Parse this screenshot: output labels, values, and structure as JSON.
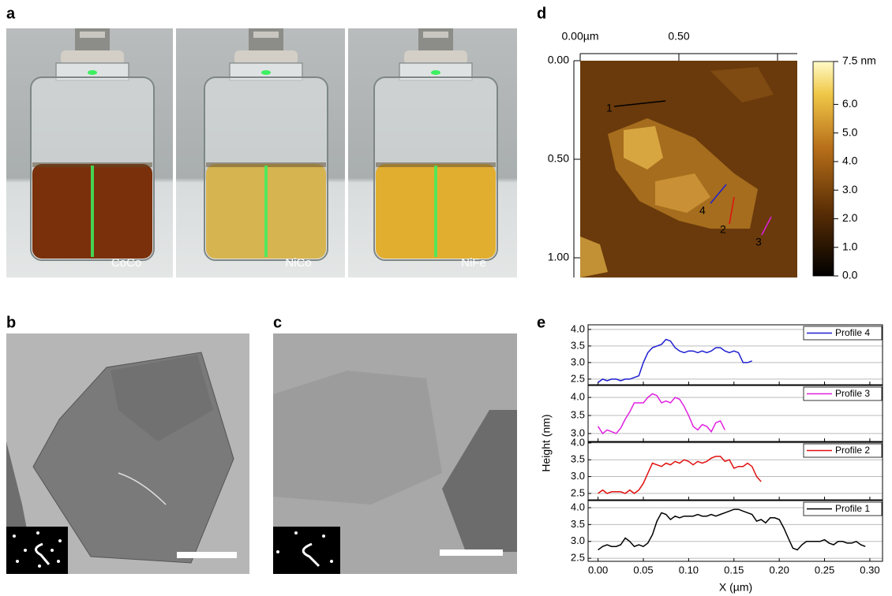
{
  "panel_labels": [
    "a",
    "b",
    "c",
    "d",
    "e"
  ],
  "vial_labels": [
    "CoCo",
    "NiCo",
    "NiFe"
  ],
  "afm": {
    "xlim": [
      0,
      1.1
    ],
    "ylim": [
      0,
      1.1
    ],
    "xticks": [
      {
        "value": 0,
        "label": "0.00µm"
      },
      {
        "value": 0.5,
        "label": "0.50"
      },
      {
        "value": 1.0,
        "label": null
      }
    ],
    "yticks": [
      {
        "value": 0,
        "label": "0.00"
      },
      {
        "value": 0.5,
        "label": "0.50"
      },
      {
        "value": 1.0,
        "label": "1.00"
      }
    ],
    "colorbar": {
      "clim": [
        0,
        7.5
      ],
      "ticks": [
        {
          "value": 0,
          "label": "0.0"
        },
        {
          "value": 1,
          "label": "1.0"
        },
        {
          "value": 2,
          "label": "2.0"
        },
        {
          "value": 3,
          "label": "3.0"
        },
        {
          "value": 4,
          "label": "4.0"
        },
        {
          "value": 5,
          "label": "5.0"
        },
        {
          "value": 6,
          "label": "6.0"
        },
        {
          "value": 7.5,
          "label": "7.5 nm"
        }
      ]
    },
    "profile_labels": [
      "1",
      "2",
      "3",
      "4"
    ]
  },
  "chart_data": {
    "type": "line",
    "x_label": "X (µm)",
    "y_label": "Height (nm)",
    "xlim": [
      -0.011,
      0.314
    ],
    "xticks": [
      {
        "value": 0,
        "label": "0.00"
      },
      {
        "value": 0.05,
        "label": "0.05"
      },
      {
        "value": 0.1,
        "label": "0.10"
      },
      {
        "value": 0.15,
        "label": "0.15"
      },
      {
        "value": 0.2,
        "label": "0.20"
      },
      {
        "value": 0.25,
        "label": "0.25"
      },
      {
        "value": 0.3,
        "label": "0.30"
      }
    ],
    "grid": true,
    "panels": [
      {
        "ylim": [
          2.33,
          4.14
        ],
        "yticks": [
          {
            "value": 2.5,
            "label": "2.5"
          },
          {
            "value": 3,
            "label": "3.0"
          },
          {
            "value": 3.5,
            "label": "3.5"
          },
          {
            "value": 4,
            "label": "4.0"
          }
        ],
        "series": [
          {
            "name": "Profile 4",
            "color": "#1f1fd0",
            "x": [
              0,
              0.005,
              0.01,
              0.015,
              0.02,
              0.025,
              0.03,
              0.035,
              0.04,
              0.045,
              0.05,
              0.055,
              0.06,
              0.065,
              0.07,
              0.075,
              0.08,
              0.085,
              0.09,
              0.095,
              0.1,
              0.105,
              0.11,
              0.115,
              0.12,
              0.125,
              0.13,
              0.135,
              0.14,
              0.145,
              0.15,
              0.155,
              0.16,
              0.165,
              0.17
            ],
            "values": [
              2.4,
              2.5,
              2.45,
              2.5,
              2.5,
              2.45,
              2.5,
              2.5,
              2.55,
              2.6,
              3.0,
              3.3,
              3.45,
              3.5,
              3.55,
              3.7,
              3.65,
              3.45,
              3.35,
              3.3,
              3.35,
              3.35,
              3.3,
              3.35,
              3.3,
              3.35,
              3.45,
              3.45,
              3.35,
              3.3,
              3.35,
              3.3,
              3.0,
              3.0,
              3.05
            ]
          }
        ]
      },
      {
        "ylim": [
          2.78,
          4.33
        ],
        "yticks": [
          {
            "value": 3,
            "label": "3.0"
          },
          {
            "value": 3.5,
            "label": "3.5"
          },
          {
            "value": 4,
            "label": "4.0"
          }
        ],
        "series": [
          {
            "name": "Profile 3",
            "color": "#e020e0",
            "x": [
              0,
              0.005,
              0.01,
              0.015,
              0.02,
              0.025,
              0.03,
              0.035,
              0.04,
              0.045,
              0.05,
              0.055,
              0.06,
              0.065,
              0.07,
              0.075,
              0.08,
              0.085,
              0.09,
              0.095,
              0.1,
              0.105,
              0.11,
              0.115,
              0.12,
              0.125,
              0.13,
              0.135,
              0.14
            ],
            "values": [
              3.2,
              3.0,
              3.1,
              3.05,
              3.0,
              3.15,
              3.4,
              3.6,
              3.85,
              3.85,
              3.85,
              4.0,
              4.1,
              4.05,
              3.85,
              3.9,
              3.85,
              4.0,
              3.95,
              3.75,
              3.5,
              3.2,
              3.1,
              3.25,
              3.2,
              3.05,
              3.3,
              3.35,
              3.1
            ]
          }
        ]
      },
      {
        "ylim": [
          2.31,
          4.02
        ],
        "yticks": [
          {
            "value": 2.5,
            "label": "2.5"
          },
          {
            "value": 3,
            "label": "3.0"
          },
          {
            "value": 3.5,
            "label": "3.5"
          },
          {
            "value": 4,
            "label": "4.0"
          }
        ],
        "series": [
          {
            "name": "Profile 2",
            "color": "#e01010",
            "x": [
              0,
              0.005,
              0.01,
              0.015,
              0.02,
              0.025,
              0.03,
              0.035,
              0.04,
              0.045,
              0.05,
              0.055,
              0.06,
              0.065,
              0.07,
              0.075,
              0.08,
              0.085,
              0.09,
              0.095,
              0.1,
              0.105,
              0.11,
              0.115,
              0.12,
              0.125,
              0.13,
              0.135,
              0.14,
              0.145,
              0.15,
              0.155,
              0.16,
              0.165,
              0.17,
              0.175,
              0.18
            ],
            "values": [
              2.5,
              2.6,
              2.5,
              2.55,
              2.55,
              2.55,
              2.5,
              2.6,
              2.5,
              2.6,
              2.8,
              3.1,
              3.4,
              3.35,
              3.3,
              3.4,
              3.35,
              3.45,
              3.4,
              3.5,
              3.45,
              3.35,
              3.45,
              3.4,
              3.45,
              3.55,
              3.6,
              3.6,
              3.45,
              3.5,
              3.25,
              3.3,
              3.3,
              3.4,
              3.3,
              3.0,
              2.85
            ]
          }
        ]
      },
      {
        "ylim": [
          2.41,
          4.21
        ],
        "yticks": [
          {
            "value": 2.5,
            "label": "2.5"
          },
          {
            "value": 3,
            "label": "3.0"
          },
          {
            "value": 3.5,
            "label": "3.5"
          },
          {
            "value": 4,
            "label": "4.0"
          }
        ],
        "series": [
          {
            "name": "Profile 1",
            "color": "#000000",
            "x": [
              0,
              0.005,
              0.01,
              0.015,
              0.02,
              0.025,
              0.03,
              0.035,
              0.04,
              0.045,
              0.05,
              0.055,
              0.06,
              0.065,
              0.07,
              0.075,
              0.08,
              0.085,
              0.09,
              0.095,
              0.1,
              0.105,
              0.11,
              0.115,
              0.12,
              0.125,
              0.13,
              0.135,
              0.14,
              0.145,
              0.15,
              0.155,
              0.16,
              0.165,
              0.17,
              0.175,
              0.18,
              0.185,
              0.19,
              0.195,
              0.2,
              0.205,
              0.21,
              0.215,
              0.22,
              0.225,
              0.23,
              0.235,
              0.24,
              0.245,
              0.25,
              0.255,
              0.26,
              0.265,
              0.27,
              0.275,
              0.28,
              0.285,
              0.29,
              0.295
            ],
            "values": [
              2.75,
              2.85,
              2.9,
              2.85,
              2.85,
              2.9,
              3.1,
              3.0,
              2.85,
              2.9,
              2.85,
              2.95,
              3.2,
              3.6,
              3.85,
              3.8,
              3.65,
              3.75,
              3.7,
              3.75,
              3.75,
              3.75,
              3.8,
              3.75,
              3.75,
              3.8,
              3.75,
              3.8,
              3.85,
              3.9,
              3.95,
              3.95,
              3.9,
              3.85,
              3.8,
              3.6,
              3.65,
              3.55,
              3.7,
              3.7,
              3.65,
              3.4,
              3.1,
              2.8,
              2.75,
              2.9,
              3.0,
              3.0,
              3.0,
              3.0,
              3.05,
              2.95,
              2.9,
              3.0,
              3.0,
              2.95,
              2.95,
              3.0,
              2.9,
              2.85
            ]
          }
        ]
      }
    ]
  }
}
